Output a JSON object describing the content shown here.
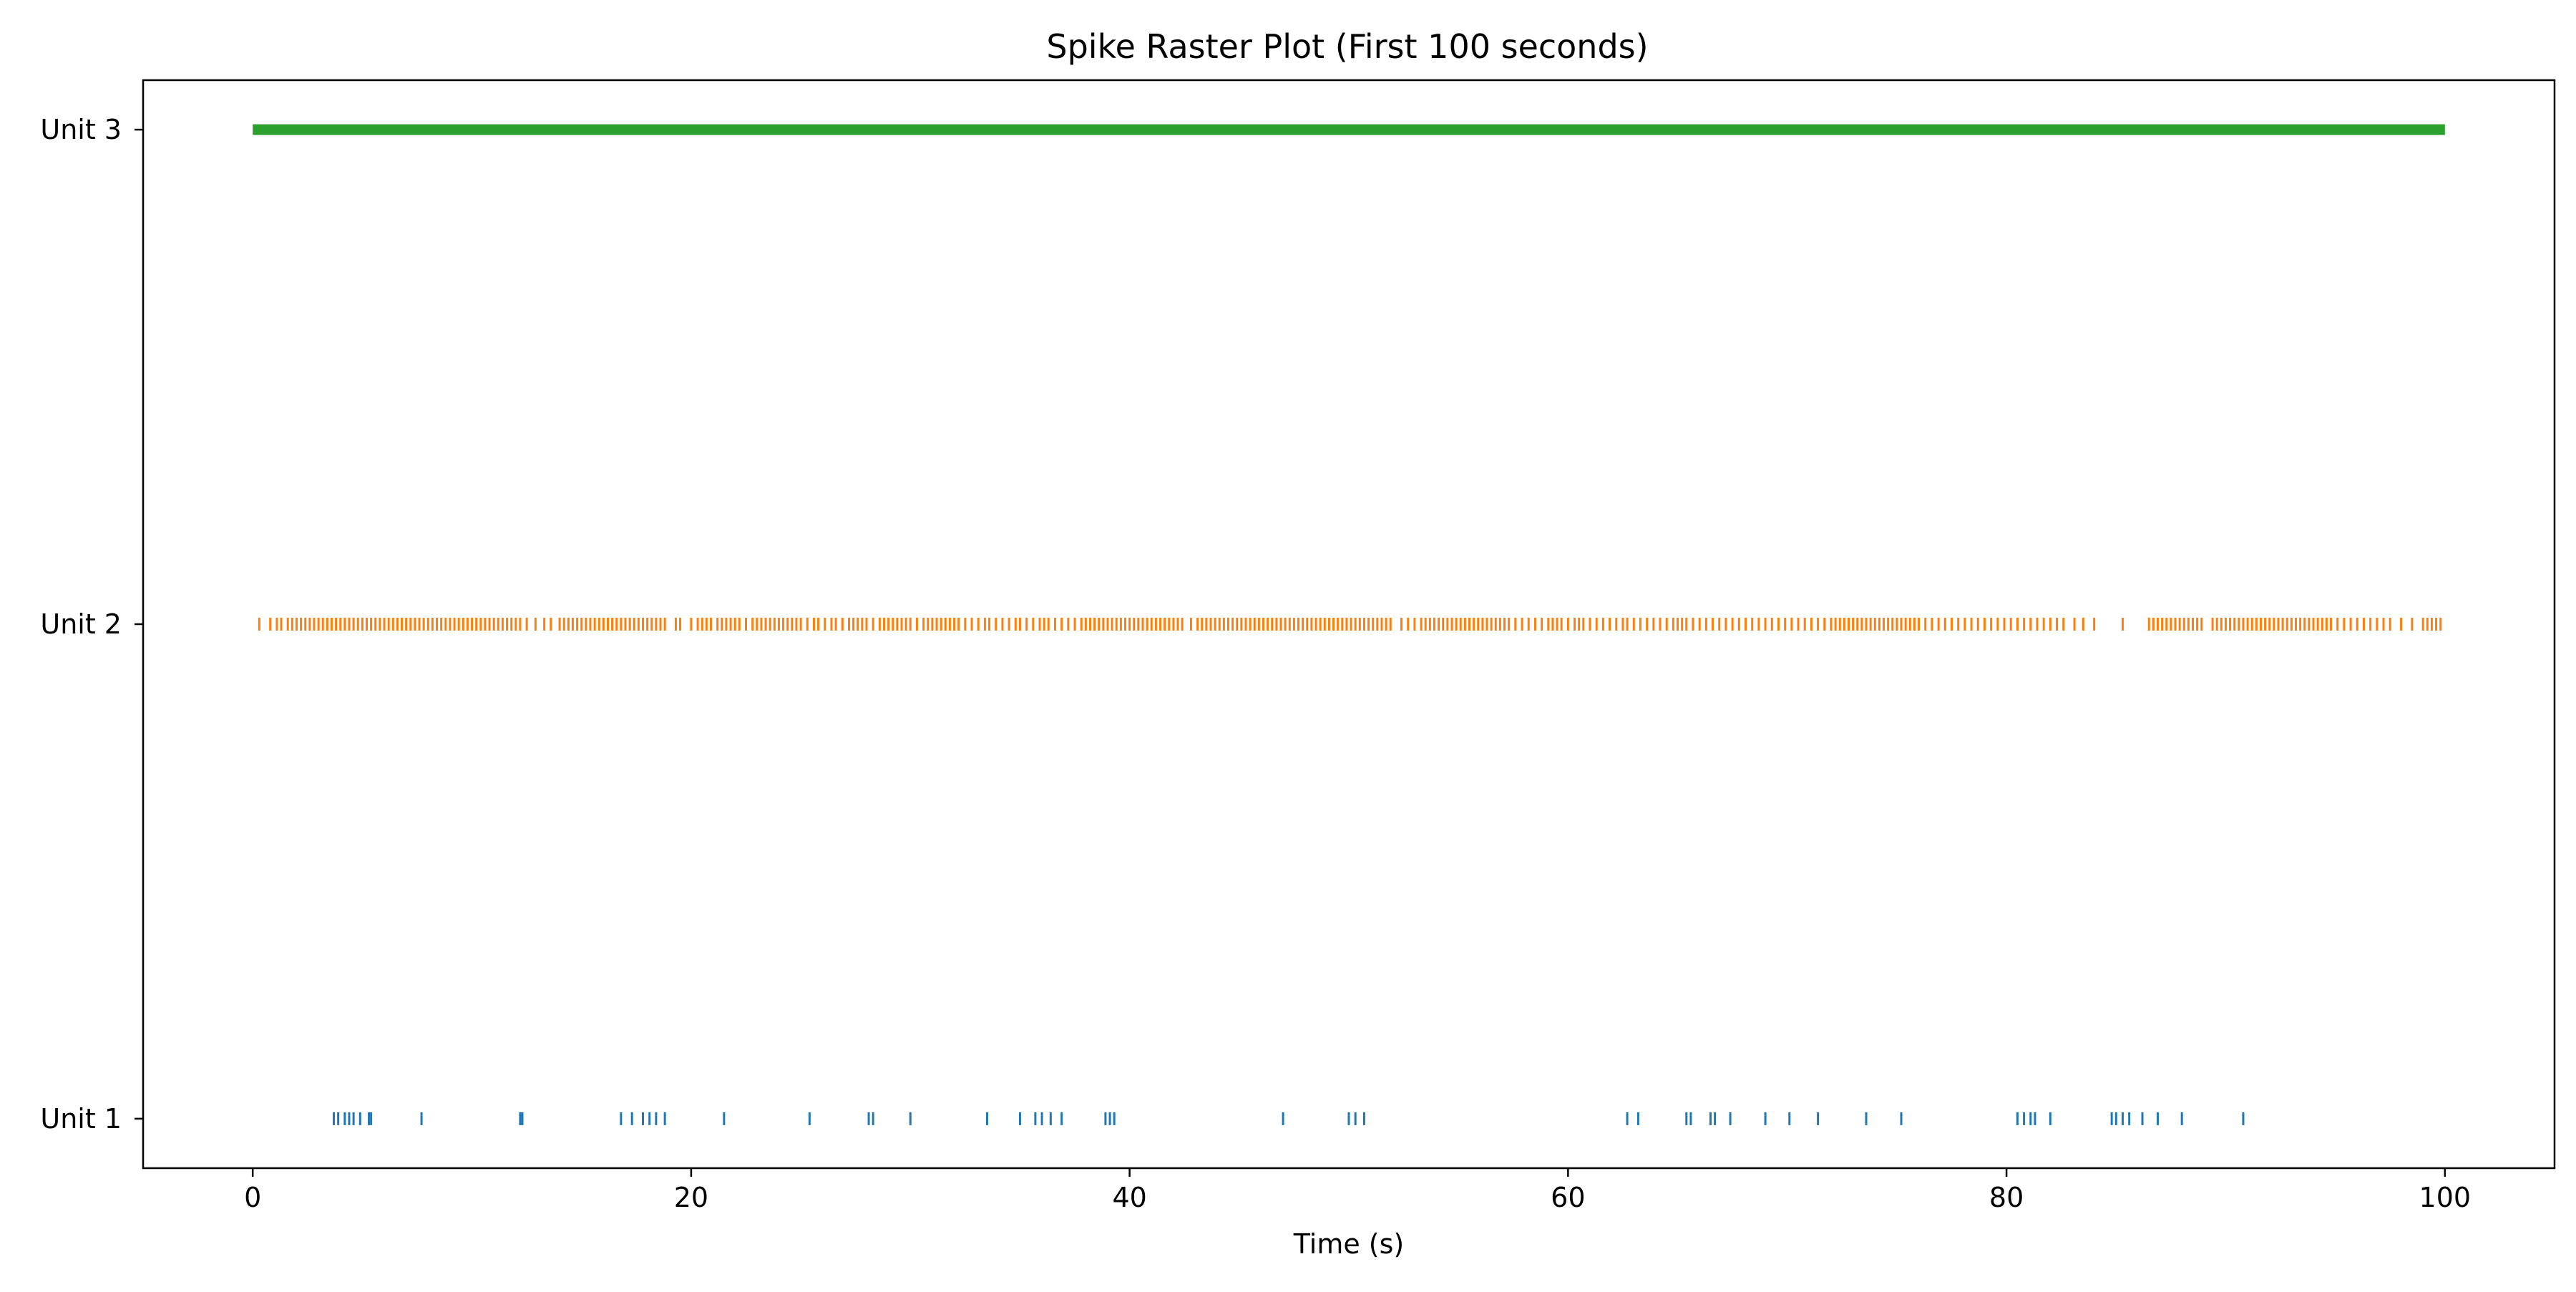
{
  "chart_data": {
    "type": "scatter",
    "title": "Spike Raster Plot (First 100 seconds)",
    "xlabel": "Time (s)",
    "ylabel": "",
    "xlim": [
      -5,
      105
    ],
    "ylim": [
      0.9,
      3.1
    ],
    "xticks": [
      0,
      20,
      40,
      60,
      80,
      100
    ],
    "xtick_labels": [
      "0",
      "20",
      "40",
      "60",
      "80",
      "100"
    ],
    "grid": false,
    "legend": "none",
    "series": [
      {
        "label": "Unit 1",
        "y": 1,
        "color": "#1f77b4",
        "spike_times": [
          3.7,
          3.9,
          4.2,
          4.4,
          4.6,
          4.9,
          5.3,
          5.4,
          7.7,
          12.2,
          12.3,
          16.8,
          17.3,
          17.8,
          18.1,
          18.4,
          18.8,
          21.5,
          25.4,
          28.1,
          28.3,
          30.0,
          33.5,
          35.0,
          35.7,
          36.0,
          36.4,
          36.9,
          38.9,
          39.1,
          39.3,
          47.0,
          50.0,
          50.3,
          50.7,
          62.7,
          63.2,
          65.4,
          65.6,
          66.5,
          66.7,
          67.4,
          69.0,
          70.1,
          71.4,
          73.6,
          75.2,
          80.5,
          80.8,
          81.1,
          81.3,
          82.0,
          84.8,
          85.0,
          85.3,
          85.6,
          86.2,
          86.9,
          88.0,
          90.8
        ]
      },
      {
        "label": "Unit 2",
        "y": 2,
        "color": "#ff7f0e",
        "spike_times": [
          0.3,
          0.8,
          1.1,
          1.3,
          1.6,
          1.8,
          2.0,
          2.2,
          2.4,
          2.6,
          2.8,
          3.0,
          3.2,
          3.4,
          3.6,
          3.8,
          4.0,
          4.2,
          4.4,
          4.6,
          4.8,
          5.0,
          5.2,
          5.4,
          5.6,
          5.8,
          6.0,
          6.2,
          6.4,
          6.6,
          6.8,
          7.0,
          7.2,
          7.4,
          7.6,
          7.8,
          8.0,
          8.2,
          8.4,
          8.6,
          8.8,
          9.0,
          9.2,
          9.4,
          9.6,
          9.8,
          10.0,
          10.2,
          10.4,
          10.6,
          10.8,
          11.0,
          11.2,
          11.4,
          11.6,
          11.8,
          12.0,
          12.2,
          12.5,
          12.9,
          13.3,
          13.6,
          14.0,
          14.2,
          14.4,
          14.6,
          14.8,
          15.0,
          15.2,
          15.4,
          15.6,
          15.8,
          16.0,
          16.2,
          16.4,
          16.6,
          16.8,
          17.0,
          17.2,
          17.4,
          17.6,
          17.8,
          18.0,
          18.2,
          18.4,
          18.6,
          18.8,
          19.3,
          19.5,
          20.0,
          20.3,
          20.5,
          20.7,
          20.9,
          21.2,
          21.4,
          21.6,
          21.8,
          22.0,
          22.2,
          22.5,
          22.8,
          23.0,
          23.2,
          23.4,
          23.6,
          23.8,
          24.0,
          24.2,
          24.4,
          24.6,
          24.8,
          25.0,
          25.3,
          25.6,
          25.8,
          26.1,
          26.4,
          26.6,
          26.9,
          27.2,
          27.4,
          27.6,
          27.8,
          28.0,
          28.3,
          28.6,
          28.8,
          29.0,
          29.2,
          29.4,
          29.6,
          29.8,
          30.0,
          30.3,
          30.6,
          30.8,
          31.0,
          31.2,
          31.4,
          31.6,
          31.8,
          32.0,
          32.2,
          32.5,
          32.8,
          33.1,
          33.4,
          33.6,
          33.9,
          34.2,
          34.5,
          34.8,
          35.0,
          35.3,
          35.6,
          35.9,
          36.1,
          36.3,
          36.6,
          36.9,
          37.2,
          37.5,
          37.8,
          38.0,
          38.2,
          38.4,
          38.6,
          38.8,
          39.0,
          39.2,
          39.4,
          39.6,
          39.8,
          40.0,
          40.2,
          40.4,
          40.6,
          40.8,
          41.0,
          41.2,
          41.4,
          41.6,
          41.8,
          42.0,
          42.2,
          42.4,
          42.8,
          43.1,
          43.3,
          43.5,
          43.7,
          43.9,
          44.1,
          44.3,
          44.5,
          44.7,
          44.9,
          45.1,
          45.3,
          45.5,
          45.7,
          45.9,
          46.1,
          46.3,
          46.5,
          46.7,
          46.9,
          47.1,
          47.3,
          47.5,
          47.7,
          47.9,
          48.1,
          48.3,
          48.5,
          48.7,
          48.9,
          49.1,
          49.3,
          49.5,
          49.7,
          49.9,
          50.1,
          50.3,
          50.5,
          50.7,
          50.9,
          51.1,
          51.3,
          51.5,
          51.7,
          51.9,
          52.4,
          52.7,
          53.0,
          53.3,
          53.5,
          53.7,
          53.9,
          54.1,
          54.3,
          54.5,
          54.7,
          54.9,
          55.1,
          55.3,
          55.5,
          55.7,
          55.9,
          56.1,
          56.3,
          56.5,
          56.7,
          56.9,
          57.1,
          57.3,
          57.6,
          57.9,
          58.2,
          58.5,
          58.8,
          59.1,
          59.3,
          59.5,
          59.7,
          60.0,
          60.3,
          60.5,
          60.7,
          61.0,
          61.3,
          61.6,
          61.9,
          62.2,
          62.5,
          62.7,
          63.0,
          63.3,
          63.6,
          63.9,
          64.2,
          64.5,
          64.8,
          65.0,
          65.2,
          65.4,
          65.7,
          66.0,
          66.3,
          66.6,
          66.9,
          67.2,
          67.5,
          67.8,
          68.1,
          68.4,
          68.7,
          69.0,
          69.3,
          69.6,
          69.9,
          70.2,
          70.5,
          70.8,
          71.1,
          71.4,
          71.7,
          72.0,
          72.2,
          72.4,
          72.6,
          72.8,
          73.0,
          73.2,
          73.4,
          73.6,
          73.8,
          74.0,
          74.2,
          74.4,
          74.6,
          74.8,
          75.0,
          75.2,
          75.4,
          75.6,
          75.8,
          76.0,
          76.3,
          76.6,
          76.9,
          77.2,
          77.5,
          77.8,
          78.1,
          78.4,
          78.7,
          79.0,
          79.3,
          79.6,
          79.9,
          80.2,
          80.5,
          80.8,
          81.1,
          81.4,
          81.7,
          82.0,
          82.3,
          82.6,
          83.1,
          83.5,
          84.0,
          85.3,
          86.5,
          86.7,
          86.9,
          87.1,
          87.3,
          87.5,
          87.7,
          87.9,
          88.1,
          88.3,
          88.5,
          88.7,
          88.9,
          89.4,
          89.6,
          89.8,
          90.0,
          90.2,
          90.4,
          90.6,
          90.8,
          91.0,
          91.2,
          91.4,
          91.6,
          91.8,
          92.0,
          92.2,
          92.4,
          92.6,
          92.8,
          93.0,
          93.2,
          93.4,
          93.6,
          93.8,
          94.0,
          94.2,
          94.4,
          94.6,
          94.8,
          95.1,
          95.4,
          95.7,
          96.0,
          96.3,
          96.6,
          96.9,
          97.2,
          97.5,
          98.0,
          98.5,
          99.0,
          99.2,
          99.4,
          99.6,
          99.8
        ]
      },
      {
        "label": "Unit 3",
        "y": 3,
        "color": "#2ca02c",
        "continuous": true,
        "range": [
          0,
          100
        ]
      }
    ]
  }
}
